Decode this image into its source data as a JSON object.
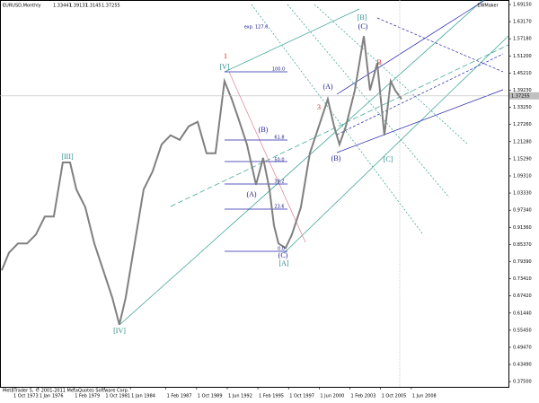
{
  "chart_data": {
    "type": "line",
    "title": "EURUSD,Monthly",
    "ohlc": [
      1.33447,
      1.39137,
      1.3145,
      1.37255
    ],
    "brand": "EWMaker",
    "footer": "MetaTrader 5, © 2001-2011 MetaQuotes Software Corp.",
    "x": [
      1972.81,
      1973.44,
      1974.22,
      1975.0,
      1975.78,
      1976.56,
      1977.34,
      1978.12,
      1978.75,
      1979.3,
      1980.08,
      1980.86,
      1981.64,
      1982.42,
      1983.04,
      1983.59,
      1984.37,
      1985.15,
      1985.93,
      1986.71,
      1987.49,
      1988.28,
      1989.06,
      1989.84,
      1990.62,
      1991.4,
      1992.18,
      1992.81,
      1993.35,
      1994.13,
      1994.92,
      1995.54,
      1996.09,
      1996.48,
      1996.87,
      1997.49,
      1998.04,
      1998.82,
      1999.6,
      2000.38,
      2001.16,
      2001.71,
      2002.18,
      2002.73,
      2003.51,
      2004.29,
      2004.83,
      2005.46,
      2006.08,
      2006.63,
      2007.02,
      2007.57
    ],
    "values": [
      0.763,
      0.825,
      0.857,
      0.857,
      0.888,
      0.951,
      0.951,
      1.14,
      1.14,
      1.046,
      0.983,
      0.857,
      0.763,
      0.668,
      0.574,
      0.668,
      0.857,
      1.046,
      1.109,
      1.203,
      1.235,
      1.219,
      1.266,
      1.282,
      1.172,
      1.172,
      1.424,
      1.361,
      1.298,
      1.203,
      1.062,
      1.156,
      1.046,
      0.92,
      0.857,
      0.841,
      0.888,
      0.983,
      1.172,
      1.266,
      1.361,
      1.266,
      1.203,
      1.266,
      1.392,
      1.581,
      1.392,
      1.487,
      1.235,
      1.424,
      1.392,
      1.361
    ],
    "color": "#808080",
    "xlim": [
      1972.66,
      2016.79
    ],
    "ylim": [
      0.3567,
      1.7072
    ],
    "xticks": [
      {
        "value": 1973.75,
        "label": "1 Oct 1973"
      },
      {
        "value": 1976.0,
        "label": "1 Jan 1976"
      },
      {
        "value": 1979.08,
        "label": "1 Feb 1979"
      },
      {
        "value": 1981.75,
        "label": "1 Oct 1981"
      },
      {
        "value": 1984.0,
        "label": "1 Jan 1984"
      },
      {
        "value": 1987.08,
        "label": "1 Feb 1987"
      },
      {
        "value": 1989.75,
        "label": "1 Oct 1989"
      },
      {
        "value": 1992.42,
        "label": "1 Jun 1992"
      },
      {
        "value": 1995.08,
        "label": "1 Feb 1995"
      },
      {
        "value": 1997.75,
        "label": "1 Oct 1997"
      },
      {
        "value": 2000.42,
        "label": "1 Jun 2000"
      },
      {
        "value": 2003.08,
        "label": "1 Feb 2003"
      },
      {
        "value": 2005.75,
        "label": "1 Oct 2005"
      },
      {
        "value": 2008.42,
        "label": "1 Jun 2008"
      }
    ],
    "yticks": [
      {
        "value": 1.6915,
        "label": "1.69150"
      },
      {
        "value": 1.6317,
        "label": "1.63170"
      },
      {
        "value": 1.5718,
        "label": "1.57180"
      },
      {
        "value": 1.512,
        "label": "1.51200"
      },
      {
        "value": 1.4521,
        "label": "1.45210"
      },
      {
        "value": 1.3923,
        "label": "1.39230"
      },
      {
        "value": 1.3325,
        "label": "1.33250"
      },
      {
        "value": 1.2726,
        "label": "1.27260"
      },
      {
        "value": 1.2128,
        "label": "1.21280"
      },
      {
        "value": 1.1529,
        "label": "1.15290"
      },
      {
        "value": 1.0931,
        "label": "1.09310"
      },
      {
        "value": 1.0333,
        "label": "1.03330"
      },
      {
        "value": 0.9734,
        "label": "0.97340"
      },
      {
        "value": 0.9136,
        "label": "0.91360"
      },
      {
        "value": 0.8537,
        "label": "0.85370"
      },
      {
        "value": 0.7939,
        "label": "0.79390"
      },
      {
        "value": 0.7341,
        "label": "0.73410"
      },
      {
        "value": 0.6742,
        "label": "0.67420"
      },
      {
        "value": 0.6144,
        "label": "0.61440"
      },
      {
        "value": 0.5545,
        "label": "0.55450"
      },
      {
        "value": 0.4947,
        "label": "0.49470"
      },
      {
        "value": 0.4349,
        "label": "0.43490"
      },
      {
        "value": 0.375,
        "label": "0.37500"
      }
    ],
    "annotations": [
      {
        "text": "[III]",
        "color": "#2e8b8b"
      },
      {
        "text": "[IV]",
        "color": "#2e8b8b"
      },
      {
        "text": "[V]",
        "color": "#2e8b8b"
      },
      {
        "text": "1",
        "color": "#cc2222"
      },
      {
        "text": "(A)",
        "color": "#1a1a8c"
      },
      {
        "text": "(B)",
        "color": "#1a1a8c"
      },
      {
        "text": "(C)",
        "color": "#1a1a8c"
      },
      {
        "text": "[A]",
        "color": "#2e8b8b"
      },
      {
        "text": "(A)",
        "color": "#1a1a8c"
      },
      {
        "text": "3",
        "color": "#cc2222"
      },
      {
        "text": "[B]",
        "color": "#2e8b8b"
      },
      {
        "text": "(C)",
        "color": "#1a1a8c"
      },
      {
        "text": "B",
        "color": "#cc2222"
      },
      {
        "text": "(B)",
        "color": "#1a1a8c"
      },
      {
        "text": "[C]",
        "color": "#2e8b8b"
      },
      {
        "text": "exp. 127.6",
        "color": "#1a1a8c"
      },
      {
        "text": "100.0",
        "color": "#1a1a8c"
      },
      {
        "text": "61.8",
        "color": "#1a1a8c"
      },
      {
        "text": "50.0",
        "color": "#1a1a8c"
      },
      {
        "text": "38.2",
        "color": "#1a1a8c"
      },
      {
        "text": "23.6",
        "color": "#1a1a8c"
      },
      {
        "text": "0.0",
        "color": "#1a1a8c"
      }
    ]
  }
}
